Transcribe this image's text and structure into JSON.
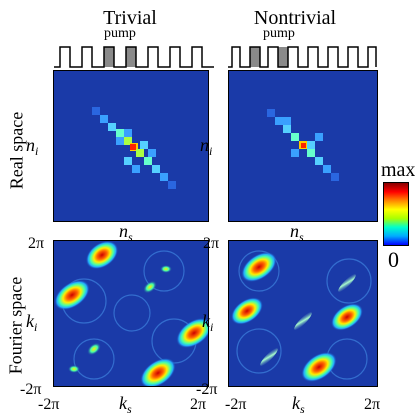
{
  "figure": {
    "columns": [
      {
        "title": "Trivial"
      },
      {
        "title": "Nontrivial"
      }
    ],
    "pump_label": "pump",
    "row_labels": {
      "real": "Real space",
      "fourier": "Fourier space"
    },
    "axes": {
      "signal_index": "n",
      "signal_sub": "s",
      "idler_index": "n",
      "idler_sub": "i",
      "signal_k": "k",
      "signal_k_sub": "s",
      "idler_k": "k",
      "idler_k_sub": "i"
    },
    "ticks": {
      "y_top": "2π",
      "y_bottom": "-2π",
      "x_left": "-2π",
      "x_right": "2π"
    },
    "colorbar": {
      "max_label": "max",
      "min_label": "0",
      "colors": [
        "#0000ff",
        "#00aaff",
        "#00ffcc",
        "#aaff00",
        "#ffff00",
        "#ff8800",
        "#ff0000",
        "#880000"
      ]
    },
    "colors": {
      "background_map": "#1a3aa8",
      "pump_fill": "#8a8a8a"
    }
  }
}
